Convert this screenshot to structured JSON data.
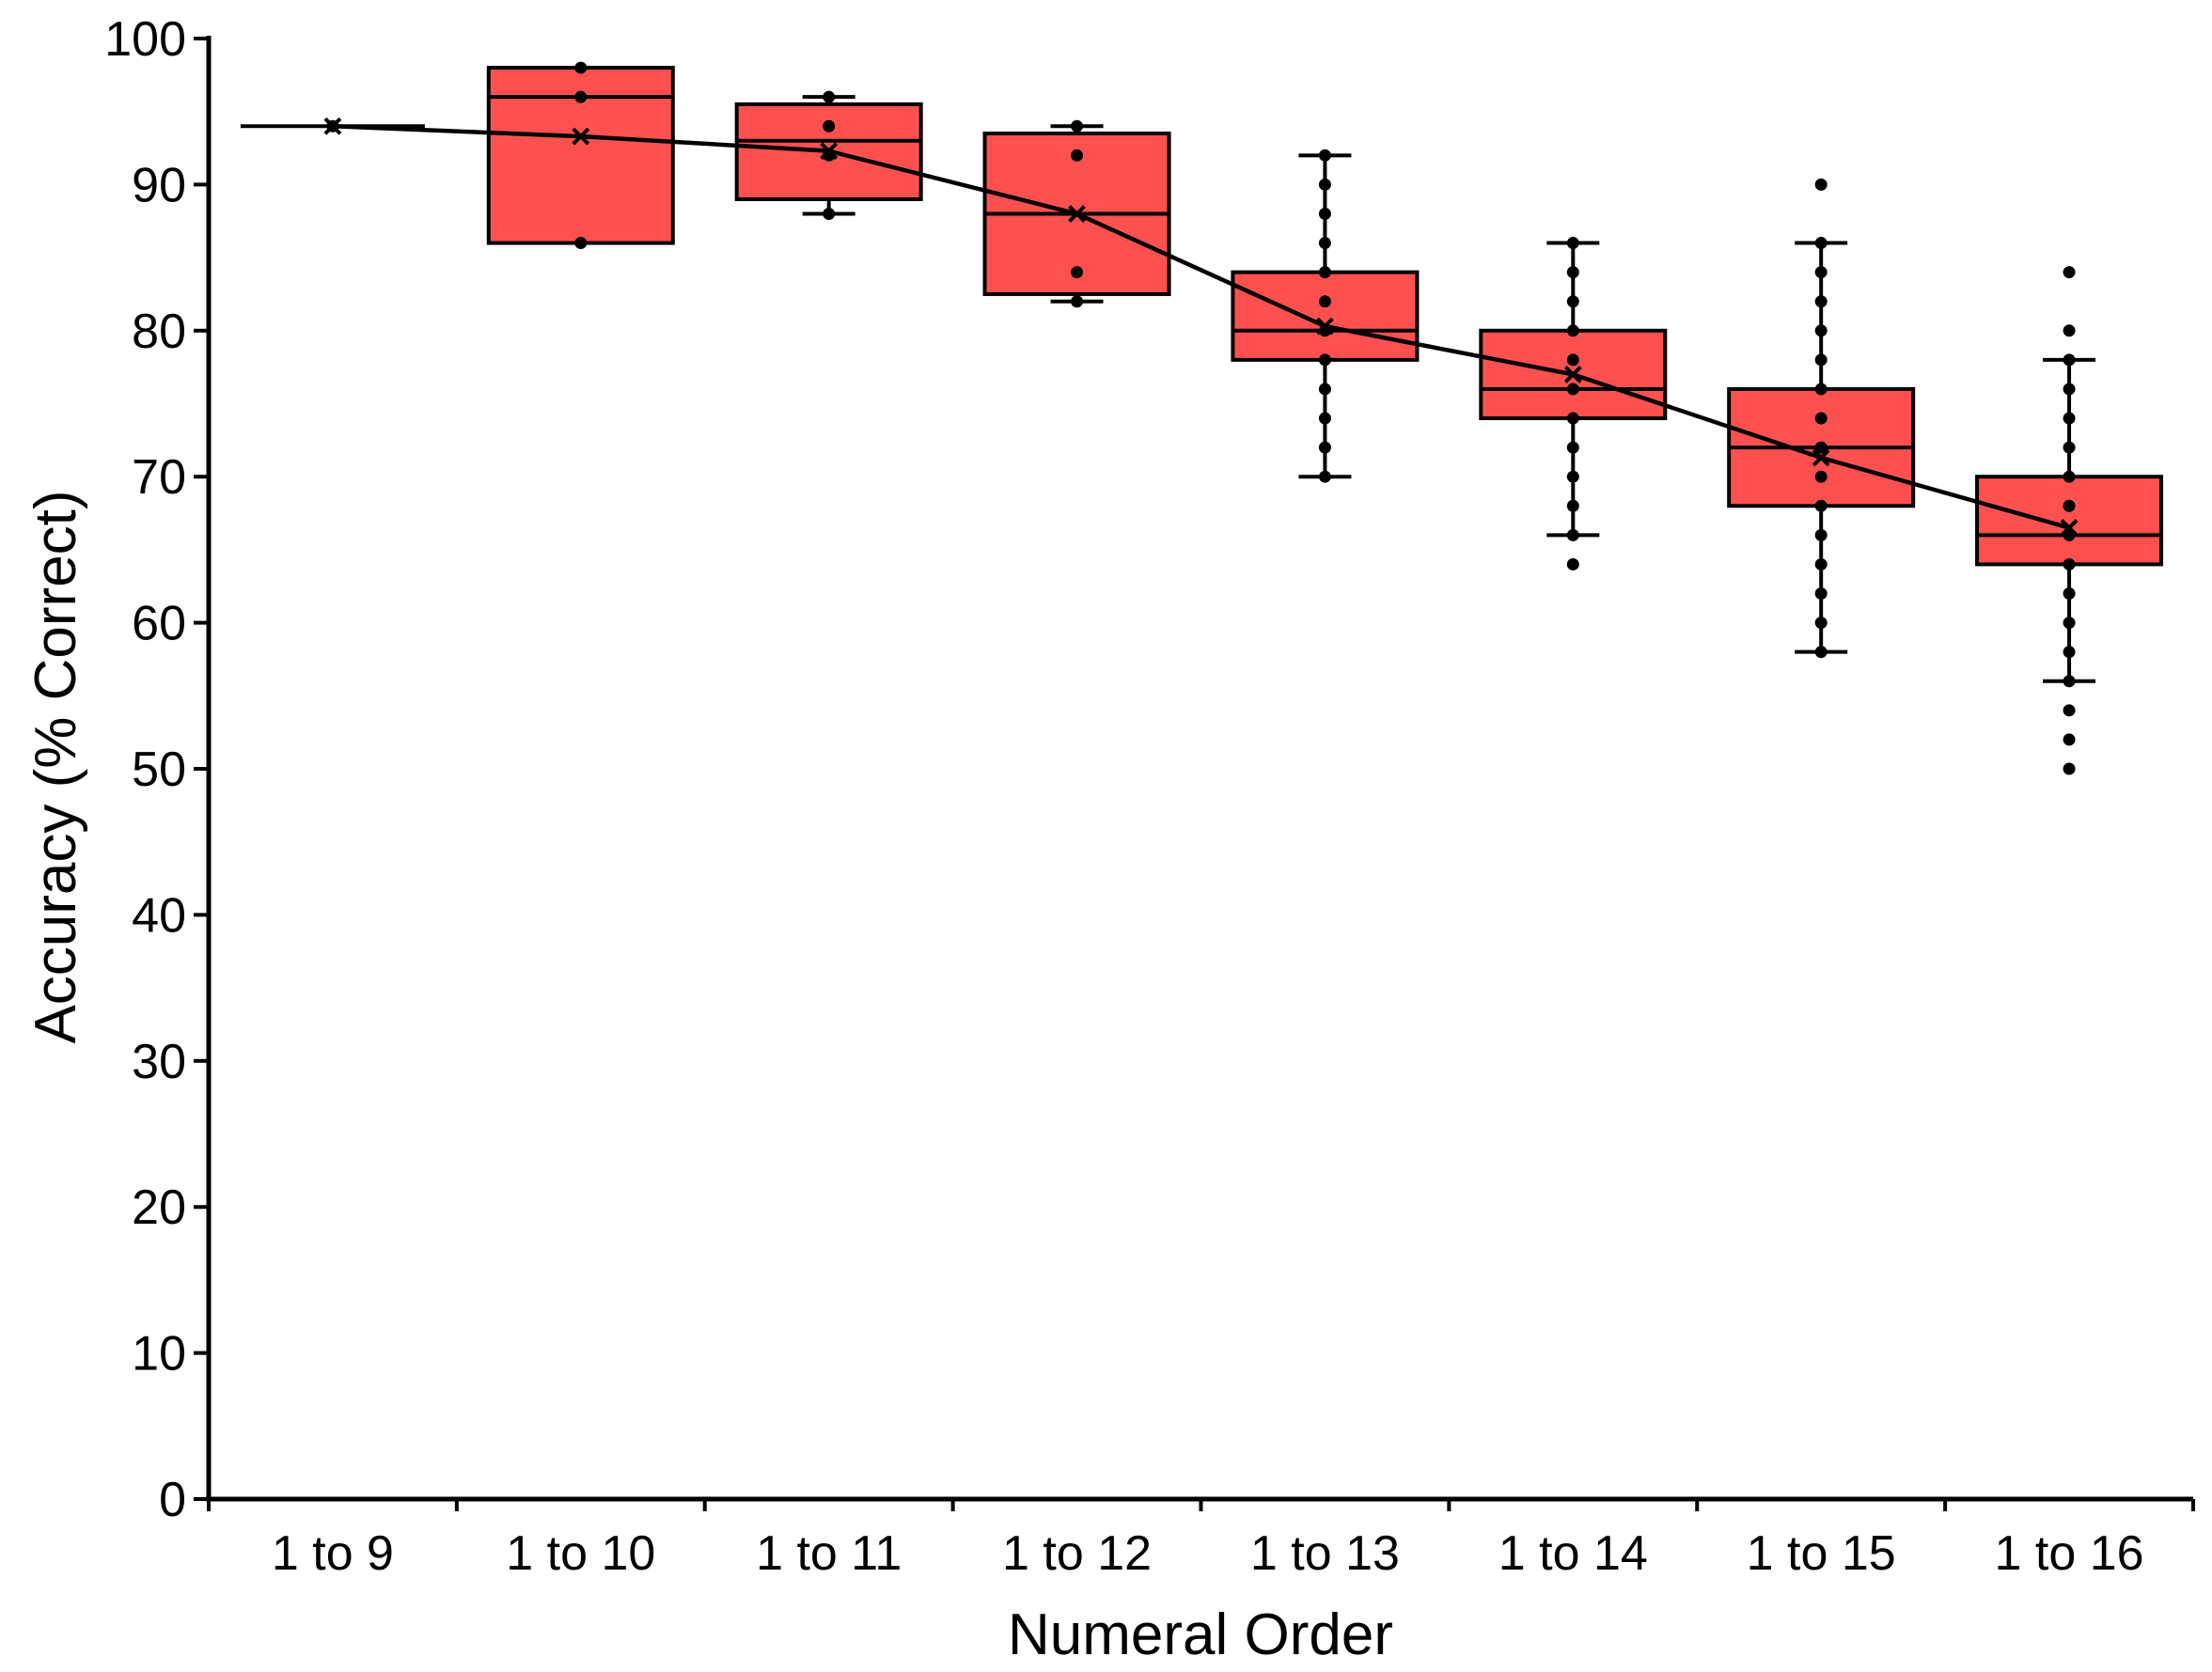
{
  "chart_data": {
    "type": "box",
    "title": "",
    "xlabel": "Numeral Order",
    "ylabel": "Accuracy (% Correct)",
    "ylim": [
      0,
      100
    ],
    "yticks": [
      0,
      10,
      20,
      30,
      40,
      50,
      60,
      70,
      80,
      90,
      100
    ],
    "ytick_labels": [
      "0",
      "10",
      "20",
      "30",
      "40",
      "50",
      "60",
      "70",
      "80",
      "90",
      "100"
    ],
    "categories": [
      "1 to 9",
      "1 to 10",
      "1 to 11",
      "1 to 12",
      "1 to 13",
      "1 to 14",
      "1 to 15",
      "1 to 16"
    ],
    "box_color": "#ff5050",
    "outline_color": "#000000",
    "boxes": [
      {
        "category": "1 to 9",
        "q1": 94,
        "median": 94,
        "q3": 94,
        "whisker_low": 94,
        "whisker_high": 94,
        "mean": 94,
        "points": [
          94
        ]
      },
      {
        "category": "1 to 10",
        "q1": 86,
        "median": 96,
        "q3": 98,
        "whisker_low": 86,
        "whisker_high": 98,
        "mean": 93.3,
        "points": [
          86,
          96,
          98
        ]
      },
      {
        "category": "1 to 11",
        "q1": 89,
        "median": 93,
        "q3": 95.5,
        "whisker_low": 88,
        "whisker_high": 96,
        "mean": 92.3,
        "points": [
          88,
          92,
          94,
          96
        ]
      },
      {
        "category": "1 to 12",
        "q1": 82.5,
        "median": 88,
        "q3": 93.5,
        "whisker_low": 82,
        "whisker_high": 94,
        "mean": 88,
        "points": [
          82,
          84,
          92,
          94
        ]
      },
      {
        "category": "1 to 13",
        "q1": 78,
        "median": 80,
        "q3": 84,
        "whisker_low": 70,
        "whisker_high": 92,
        "mean": 80.3,
        "points": [
          70,
          72,
          74,
          76,
          78,
          80,
          82,
          84,
          86,
          88,
          90,
          92
        ]
      },
      {
        "category": "1 to 14",
        "q1": 74,
        "median": 76,
        "q3": 80,
        "whisker_low": 66,
        "whisker_high": 86,
        "mean": 77,
        "points": [
          64,
          66,
          68,
          70,
          72,
          74,
          76,
          78,
          80,
          82,
          84,
          86
        ]
      },
      {
        "category": "1 to 15",
        "q1": 68,
        "median": 72,
        "q3": 76,
        "whisker_low": 58,
        "whisker_high": 86,
        "mean": 71.3,
        "points": [
          58,
          60,
          62,
          64,
          66,
          68,
          70,
          72,
          74,
          76,
          78,
          80,
          82,
          84,
          86,
          90
        ]
      },
      {
        "category": "1 to 16",
        "q1": 64,
        "median": 66,
        "q3": 70,
        "whisker_low": 56,
        "whisker_high": 78,
        "mean": 66.5,
        "points": [
          50,
          52,
          54,
          56,
          58,
          60,
          62,
          64,
          66,
          68,
          70,
          72,
          74,
          76,
          78,
          80,
          84
        ]
      }
    ],
    "mean_line": [
      94,
      93.3,
      92.3,
      88,
      80.3,
      77,
      71.3,
      66.5
    ]
  }
}
